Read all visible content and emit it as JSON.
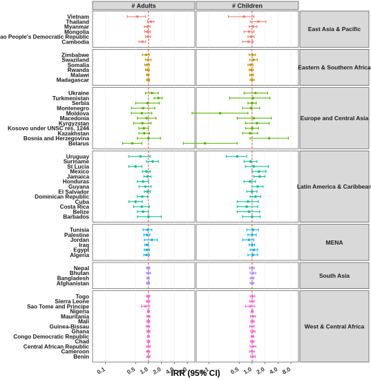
{
  "chart_data": {
    "type": "scatter",
    "subtype": "faceted forest plot",
    "xlabel": "IRR (95% CI)",
    "x_scale": "log2",
    "xlim": [
      0.05,
      12
    ],
    "reference_line": 1.0,
    "x_ticks": [
      "0.1",
      "0.5",
      "1.0",
      "2.0",
      "4.0",
      "8.0"
    ],
    "panels": [
      "# Adults",
      "# Children"
    ],
    "regions": [
      {
        "name": "East Asia & Pacific",
        "color": "#F8766D",
        "countries": [
          "Vietnam",
          "Thailand",
          "Myanmar",
          "Mongolia",
          "Lao People's Democratic Republic",
          "Cambodia"
        ],
        "adults": [
          [
            0.55,
            0.32,
            0.85
          ],
          [
            1.15,
            0.95,
            1.35
          ],
          [
            0.95,
            0.8,
            1.1
          ],
          [
            0.95,
            0.82,
            1.1
          ],
          [
            0.97,
            0.85,
            1.12
          ],
          [
            0.72,
            0.6,
            0.86
          ]
        ],
        "children": [
          [
            0.65,
            0.28,
            1.1
          ],
          [
            1.4,
            0.9,
            2.1
          ],
          [
            1.05,
            0.85,
            1.3
          ],
          [
            0.85,
            0.65,
            1.1
          ],
          [
            0.95,
            0.8,
            1.12
          ],
          [
            0.82,
            0.6,
            1.05
          ]
        ]
      },
      {
        "name": "Eastern & Southern Africa",
        "color": "#C49A00",
        "countries": [
          "Zimbabwe",
          "Swaziland",
          "Somalia",
          "Rwanda",
          "Malawi",
          "Madagascar"
        ],
        "adults": [
          [
            0.88,
            0.72,
            1.05
          ],
          [
            0.98,
            0.85,
            1.15
          ],
          [
            0.92,
            0.82,
            1.05
          ],
          [
            0.94,
            0.85,
            1.05
          ],
          [
            0.96,
            0.9,
            1.03
          ],
          [
            0.98,
            0.9,
            1.06
          ]
        ],
        "children": [
          [
            1.02,
            0.85,
            1.2
          ],
          [
            1.08,
            0.88,
            1.32
          ],
          [
            0.92,
            0.8,
            1.05
          ],
          [
            0.95,
            0.85,
            1.08
          ],
          [
            0.98,
            0.88,
            1.08
          ],
          [
            1.0,
            0.9,
            1.12
          ]
        ]
      },
      {
        "name": "Europe and Central Asia",
        "color": "#53B400",
        "countries": [
          "Ukraine",
          "Turkmenistan",
          "Serbia",
          "Montenegro",
          "Moldova",
          "Macedonia",
          "Kyrgyzstan",
          "Kosovo under UNSC res. 1244",
          "Kazakhstan",
          "Bosnia and Herzegovina",
          "Belarus"
        ],
        "adults": [
          [
            1.2,
            0.85,
            1.7
          ],
          [
            1.7,
            1.35,
            2.1
          ],
          [
            0.95,
            0.5,
            1.8
          ],
          [
            0.75,
            0.4,
            1.4
          ],
          [
            0.7,
            0.4,
            1.2
          ],
          [
            0.9,
            0.55,
            1.5
          ],
          [
            0.72,
            0.45,
            1.15
          ],
          [
            0.78,
            0.6,
            1.0
          ],
          [
            0.8,
            0.6,
            1.05
          ],
          [
            1.0,
            0.55,
            1.9
          ],
          [
            0.42,
            0.25,
            0.7
          ]
        ],
        "children": [
          [
            1.2,
            0.65,
            2.3
          ],
          [
            1.05,
            0.3,
            2.6
          ],
          [
            1.0,
            0.8,
            1.25
          ],
          [
            0.95,
            0.6,
            1.5
          ],
          [
            0.18,
            0.04,
            0.8
          ],
          [
            1.1,
            0.45,
            2.8
          ],
          [
            1.3,
            0.7,
            2.5
          ],
          [
            1.0,
            0.7,
            1.4
          ],
          [
            0.9,
            0.6,
            1.35
          ],
          [
            2.5,
            0.9,
            7.0
          ],
          [
            0.08,
            0.025,
            0.45
          ]
        ]
      },
      {
        "name": "Latin America & Caribbean",
        "color": "#00C094",
        "countries": [
          "Uruguay",
          "Suriname",
          "St Lucia",
          "Mexico",
          "Jamaica",
          "Honduras",
          "Guyana",
          "El Salvador",
          "Dominican Republic",
          "Cuba",
          "Costa Rica",
          "Belize",
          "Barbados"
        ],
        "adults": [
          [
            0.65,
            0.35,
            1.1
          ],
          [
            1.25,
            0.9,
            1.7
          ],
          [
            0.5,
            0.35,
            0.7
          ],
          [
            0.9,
            0.72,
            1.1
          ],
          [
            0.95,
            0.78,
            1.15
          ],
          [
            0.75,
            0.55,
            1.0
          ],
          [
            0.85,
            0.6,
            1.15
          ],
          [
            0.95,
            0.8,
            1.1
          ],
          [
            0.72,
            0.55,
            0.95
          ],
          [
            0.5,
            0.35,
            0.72
          ],
          [
            0.7,
            0.45,
            1.05
          ],
          [
            0.75,
            0.55,
            1.0
          ],
          [
            1.0,
            0.55,
            2.0
          ]
        ],
        "children": [
          [
            0.45,
            0.25,
            0.75
          ],
          [
            0.92,
            0.65,
            1.3
          ],
          [
            1.1,
            0.7,
            2.4
          ],
          [
            1.45,
            1.0,
            2.1
          ],
          [
            1.5,
            1.1,
            2.0
          ],
          [
            0.9,
            0.65,
            1.2
          ],
          [
            1.35,
            1.0,
            1.8
          ],
          [
            0.98,
            0.75,
            1.3
          ],
          [
            1.2,
            0.9,
            1.6
          ],
          [
            0.8,
            0.45,
            1.4
          ],
          [
            0.75,
            0.45,
            1.35
          ],
          [
            0.85,
            0.45,
            1.5
          ],
          [
            1.0,
            0.6,
            1.55
          ]
        ]
      },
      {
        "name": "MENA",
        "color": "#00B6EB",
        "countries": [
          "Tunisia",
          "Palestine",
          "Jordan",
          "Iraq",
          "Egypt",
          "Algeria"
        ],
        "adults": [
          [
            0.95,
            0.75,
            1.2
          ],
          [
            0.92,
            0.78,
            1.08
          ],
          [
            1.2,
            0.8,
            1.6
          ],
          [
            0.92,
            0.82,
            1.0
          ],
          [
            0.92,
            0.8,
            1.05
          ],
          [
            0.9,
            0.78,
            1.05
          ]
        ],
        "children": [
          [
            1.05,
            0.75,
            1.4
          ],
          [
            1.0,
            0.8,
            1.25
          ],
          [
            0.85,
            0.6,
            1.1
          ],
          [
            1.0,
            0.85,
            1.15
          ],
          [
            1.1,
            0.9,
            1.35
          ],
          [
            1.05,
            0.8,
            1.35
          ]
        ]
      },
      {
        "name": "South Asia",
        "color": "#A58AFF",
        "countries": [
          "Nepal",
          "Bhutan",
          "Bangladesh",
          "Afghanistan"
        ],
        "adults": [
          [
            0.98,
            0.9,
            1.07
          ],
          [
            1.0,
            0.9,
            1.12
          ],
          [
            0.98,
            0.92,
            1.05
          ],
          [
            0.98,
            0.9,
            1.06
          ]
        ],
        "children": [
          [
            1.0,
            0.88,
            1.12
          ],
          [
            1.05,
            0.9,
            1.22
          ],
          [
            1.0,
            0.9,
            1.1
          ],
          [
            1.0,
            0.9,
            1.1
          ]
        ]
      },
      {
        "name": "West & Central Africa",
        "color": "#FB61D7",
        "countries": [
          "Togo",
          "Sierra Leone",
          "Sao Tome and Principe",
          "Nigeria",
          "Mauritania",
          "Mali",
          "Guinea-Bissau",
          "Ghana",
          "Congo Democratic Republic",
          "Chad",
          "Central African Republic",
          "Cameroon",
          "Benin"
        ],
        "adults": [
          [
            0.98,
            0.9,
            1.07
          ],
          [
            0.98,
            0.9,
            1.07
          ],
          [
            0.85,
            0.68,
            1.05
          ],
          [
            1.0,
            0.95,
            1.05
          ],
          [
            1.0,
            0.92,
            1.08
          ],
          [
            1.0,
            0.93,
            1.07
          ],
          [
            0.98,
            0.9,
            1.07
          ],
          [
            1.0,
            0.92,
            1.08
          ],
          [
            1.0,
            0.95,
            1.05
          ],
          [
            1.0,
            0.93,
            1.07
          ],
          [
            1.0,
            0.9,
            1.1
          ],
          [
            0.98,
            0.9,
            1.07
          ],
          [
            1.0,
            0.92,
            1.08
          ]
        ],
        "children": [
          [
            1.02,
            0.9,
            1.15
          ],
          [
            1.0,
            0.88,
            1.12
          ],
          [
            0.9,
            0.7,
            1.15
          ],
          [
            1.0,
            0.95,
            1.06
          ],
          [
            1.05,
            0.92,
            1.2
          ],
          [
            1.02,
            0.93,
            1.12
          ],
          [
            1.0,
            0.88,
            1.12
          ],
          [
            1.05,
            0.93,
            1.18
          ],
          [
            1.02,
            0.95,
            1.1
          ],
          [
            1.02,
            0.92,
            1.12
          ],
          [
            1.05,
            0.9,
            1.22
          ],
          [
            1.0,
            0.88,
            1.12
          ],
          [
            1.05,
            0.92,
            1.18
          ]
        ]
      }
    ]
  }
}
